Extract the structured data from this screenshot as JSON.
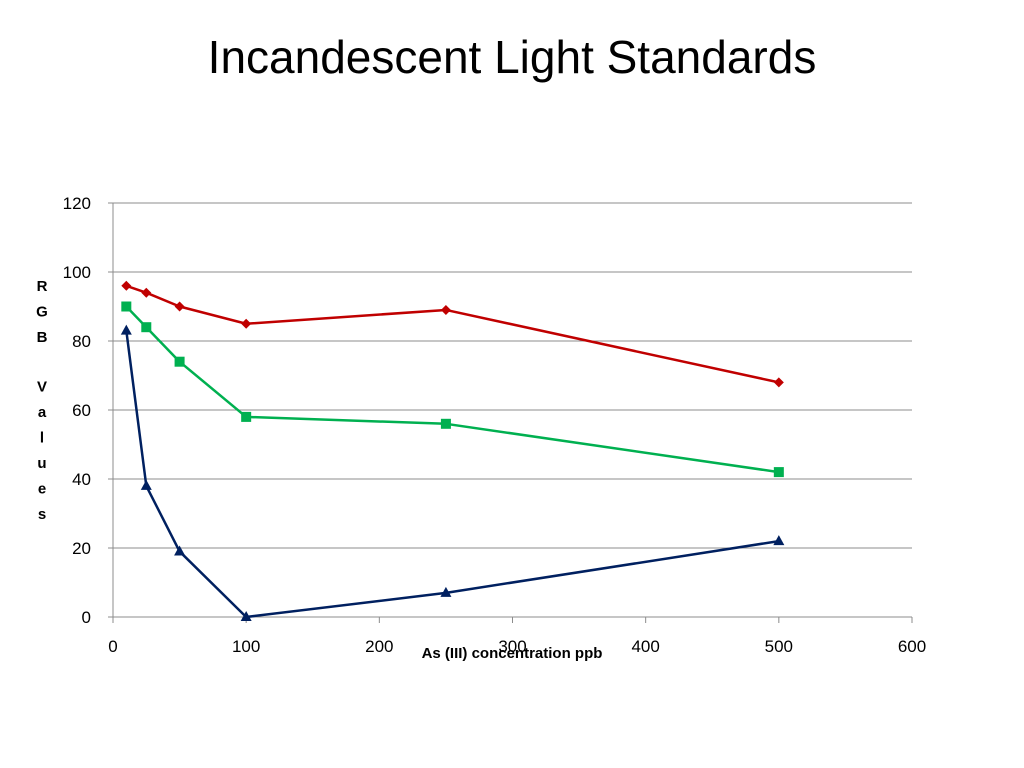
{
  "slide": {
    "title": "Incandescent Light Standards"
  },
  "chart_data": {
    "type": "line",
    "title": "",
    "xlabel": "As (III) concentration ppb",
    "ylabel": "RGB Values",
    "xlim": [
      0,
      600
    ],
    "ylim": [
      0,
      120
    ],
    "x_ticks": [
      0,
      100,
      200,
      300,
      400,
      500,
      600
    ],
    "y_ticks": [
      0,
      20,
      40,
      60,
      80,
      100,
      120
    ],
    "grid": "horizontal",
    "legend": "none",
    "series": [
      {
        "color": "#C00000",
        "marker": "diamond",
        "x": [
          10,
          25,
          50,
          100,
          250,
          500
        ],
        "y": [
          96,
          94,
          90,
          85,
          89,
          68
        ]
      },
      {
        "color": "#00B050",
        "marker": "square",
        "x": [
          10,
          25,
          50,
          100,
          250,
          500
        ],
        "y": [
          90,
          84,
          74,
          58,
          56,
          42
        ]
      },
      {
        "color": "#002060",
        "marker": "triangle",
        "x": [
          10,
          25,
          50,
          100,
          250,
          500
        ],
        "y": [
          83,
          38,
          19,
          0,
          7,
          22
        ]
      }
    ]
  }
}
